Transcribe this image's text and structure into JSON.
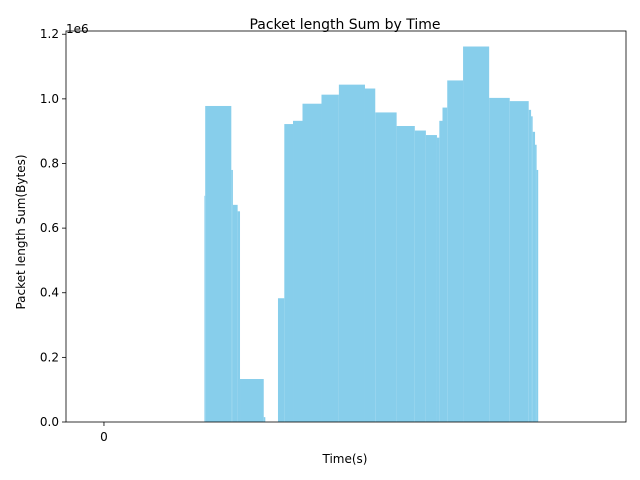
{
  "chart_data": {
    "type": "bar",
    "title": "Packet length Sum by Time",
    "xlabel": "Time(s)",
    "ylabel": "Packet length Sum(Bytes)",
    "y_offset_label": "1e6",
    "x_ticks": [
      {
        "value": 0,
        "label": "0"
      }
    ],
    "y_ticks": [
      {
        "value": 0,
        "label": "0.0"
      },
      {
        "value": 200000,
        "label": "0.2"
      },
      {
        "value": 400000,
        "label": "0.4"
      },
      {
        "value": 600000,
        "label": "0.6"
      },
      {
        "value": 800000,
        "label": "0.8"
      },
      {
        "value": 1000000,
        "label": "1.0"
      },
      {
        "value": 1200000,
        "label": "1.2"
      }
    ],
    "xlim": [
      -48,
      660
    ],
    "ylim": [
      0,
      1210000
    ],
    "grid": false,
    "color": "#87CEEB",
    "bars": [
      {
        "x": 127,
        "width": 1,
        "value": 700000
      },
      {
        "x": 128,
        "width": 33,
        "value": 978000
      },
      {
        "x": 161,
        "width": 2,
        "value": 780000
      },
      {
        "x": 163,
        "width": 6,
        "value": 672000
      },
      {
        "x": 169,
        "width": 3,
        "value": 652000
      },
      {
        "x": 172,
        "width": 30,
        "value": 133000
      },
      {
        "x": 202,
        "width": 2,
        "value": 15000
      },
      {
        "x": 220,
        "width": 8,
        "value": 383000
      },
      {
        "x": 228,
        "width": 11,
        "value": 922000
      },
      {
        "x": 239,
        "width": 12,
        "value": 932000
      },
      {
        "x": 251,
        "width": 24,
        "value": 985000
      },
      {
        "x": 275,
        "width": 22,
        "value": 1013000
      },
      {
        "x": 297,
        "width": 33,
        "value": 1044000
      },
      {
        "x": 330,
        "width": 13,
        "value": 1032000
      },
      {
        "x": 343,
        "width": 27,
        "value": 958000
      },
      {
        "x": 370,
        "width": 23,
        "value": 916000
      },
      {
        "x": 393,
        "width": 14,
        "value": 902000
      },
      {
        "x": 407,
        "width": 14,
        "value": 888000
      },
      {
        "x": 421,
        "width": 3,
        "value": 880000
      },
      {
        "x": 424,
        "width": 4,
        "value": 932000
      },
      {
        "x": 428,
        "width": 6,
        "value": 973000
      },
      {
        "x": 434,
        "width": 20,
        "value": 1057000
      },
      {
        "x": 454,
        "width": 33,
        "value": 1162000
      },
      {
        "x": 487,
        "width": 26,
        "value": 1003000
      },
      {
        "x": 513,
        "width": 24,
        "value": 993000
      },
      {
        "x": 537,
        "width": 3,
        "value": 966000
      },
      {
        "x": 540,
        "width": 2,
        "value": 946000
      },
      {
        "x": 542,
        "width": 3,
        "value": 898000
      },
      {
        "x": 545,
        "width": 2,
        "value": 858000
      },
      {
        "x": 547,
        "width": 2,
        "value": 780000
      }
    ]
  }
}
